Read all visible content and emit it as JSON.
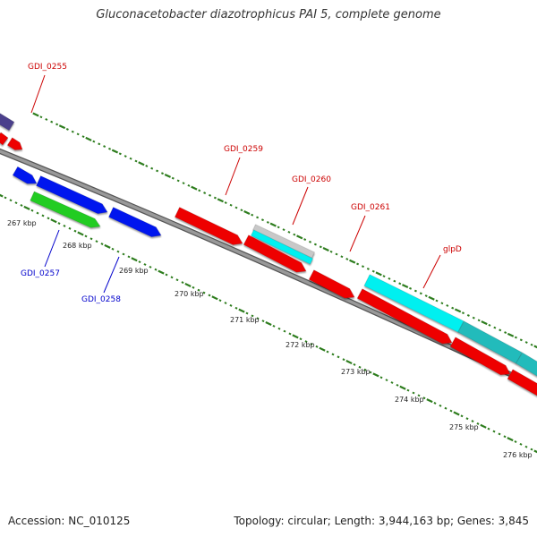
{
  "title": "Gluconacetobacter diazotrophicus PAI 5, complete genome",
  "footer": {
    "accession": "Accession: NC_010125",
    "summary": "Topology: circular; Length: 3,944,163 bp; Genes: 3,845"
  },
  "colors": {
    "backbone_fill": "#999999",
    "backbone_edge": "#555555",
    "tick": "#2e7d1e",
    "label_red": "#cc0000",
    "label_blue": "#0000cc",
    "red": "#ee0000",
    "blue": "#0018ee",
    "green": "#22cc22",
    "cyan": "#00f0f0",
    "teal": "#22bbbb",
    "gray": "#c8c8c8",
    "purple": "#4b3f8c"
  },
  "scale_labels": [
    "267 kbp",
    "268 kbp",
    "269 kbp",
    "270 kbp",
    "271 kbp",
    "272 kbp",
    "273 kbp",
    "274 kbp",
    "275 kbp",
    "276 kbp"
  ],
  "gene_labels": [
    {
      "id": "gdi_0255",
      "text": "GDI_0255",
      "color": "red"
    },
    {
      "id": "gdi_0257",
      "text": "GDI_0257",
      "color": "blue"
    },
    {
      "id": "gdi_0258",
      "text": "GDI_0258",
      "color": "blue"
    },
    {
      "id": "gdi_0259",
      "text": "GDI_0259",
      "color": "red"
    },
    {
      "id": "gdi_0260",
      "text": "GDI_0260",
      "color": "red"
    },
    {
      "id": "gdi_0261",
      "text": "GDI_0261",
      "color": "red"
    },
    {
      "id": "glpd",
      "text": "glpD",
      "color": "red"
    }
  ],
  "features": [
    {
      "color": "purple",
      "strand": "top"
    },
    {
      "color": "red",
      "strand": "top"
    },
    {
      "color": "red",
      "strand": "top"
    },
    {
      "color": "blue",
      "strand": "bottom"
    },
    {
      "color": "blue",
      "strand": "bottom"
    },
    {
      "color": "green",
      "strand": "bottom"
    },
    {
      "color": "blue",
      "strand": "bottom"
    },
    {
      "color": "red",
      "strand": "top"
    },
    {
      "color": "gray",
      "strand": "top"
    },
    {
      "color": "cyan",
      "strand": "top"
    },
    {
      "color": "red",
      "strand": "top"
    },
    {
      "color": "red",
      "strand": "top"
    },
    {
      "color": "cyan",
      "strand": "top"
    },
    {
      "color": "red",
      "strand": "top"
    },
    {
      "color": "teal",
      "strand": "top"
    },
    {
      "color": "red",
      "strand": "top"
    },
    {
      "color": "teal",
      "strand": "top"
    },
    {
      "color": "red",
      "strand": "top"
    }
  ]
}
